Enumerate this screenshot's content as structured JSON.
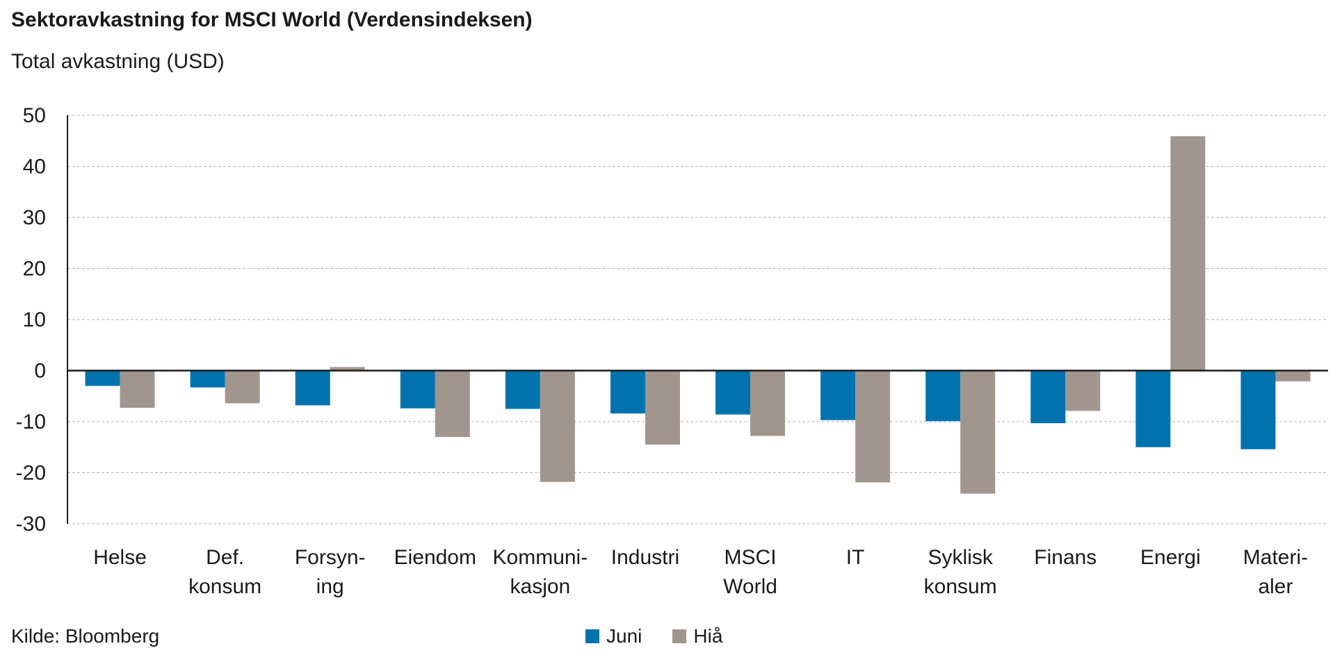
{
  "chart_data": {
    "type": "bar",
    "title": "Sektoravkastning for MSCI World (Verdensindeksen)",
    "subtitle": "Total avkastning (USD)",
    "categories": [
      [
        "Helse"
      ],
      [
        "Def.",
        "konsum"
      ],
      [
        "Forsyn-",
        "ing"
      ],
      [
        "Eiendom"
      ],
      [
        "Kommuni-",
        "kasjon"
      ],
      [
        "Industri"
      ],
      [
        "MSCI",
        "World"
      ],
      [
        "IT"
      ],
      [
        "Syklisk",
        "konsum"
      ],
      [
        "Finans"
      ],
      [
        "Energi"
      ],
      [
        "Materi-",
        "aler"
      ]
    ],
    "series": [
      {
        "name": "Juni",
        "color": "#0073ae",
        "values": [
          -3.0,
          -3.3,
          -6.8,
          -7.4,
          -7.5,
          -8.4,
          -8.6,
          -9.7,
          -9.9,
          -10.3,
          -15.0,
          -15.4
        ]
      },
      {
        "name": "Hiå",
        "color": "#a0968e",
        "values": [
          -7.3,
          -6.4,
          0.7,
          -13.0,
          -21.8,
          -14.5,
          -12.8,
          -21.9,
          -24.1,
          -7.9,
          45.9,
          -2.1
        ]
      }
    ],
    "ylim": [
      -30,
      50
    ],
    "yticks": [
      50,
      40,
      30,
      20,
      10,
      0,
      -10,
      -20,
      -30
    ],
    "grid": true,
    "legend": "bottom-center",
    "source": "Kilde: Bloomberg"
  }
}
